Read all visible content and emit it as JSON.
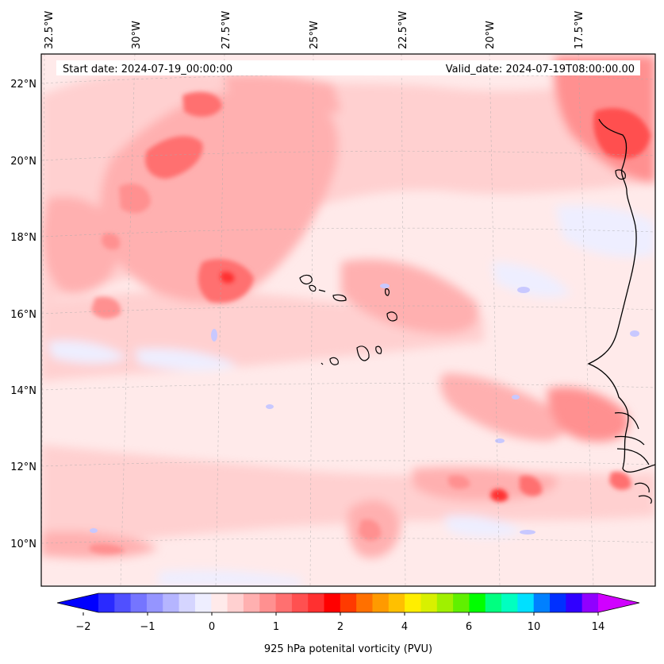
{
  "header": {
    "start_date": "Start date: 2024-07-19_00:00:00",
    "valid_date": "Valid_date: 2024-07-19T08:00:00.00"
  },
  "longitude_labels": [
    "32.5°W",
    "30°W",
    "27.5°W",
    "25°W",
    "22.5°W",
    "20°W",
    "17.5°W"
  ],
  "latitude_labels": [
    "22°N",
    "20°N",
    "18°N",
    "16°N",
    "14°N",
    "12°N",
    "10°N"
  ],
  "colorbar": {
    "title": "925 hPa potenital vorticity (PVU)",
    "tick_labels": [
      "−2",
      "−1",
      "0",
      "1",
      "2",
      "4",
      "6",
      "10",
      "14"
    ],
    "colors": [
      "#0000ff",
      "#2a2aff",
      "#5050ff",
      "#7575ff",
      "#9595ff",
      "#b5b5ff",
      "#d5d5ff",
      "#eeeeff",
      "#ffeaea",
      "#ffd0d0",
      "#ffb0b0",
      "#ff9090",
      "#ff7070",
      "#ff5050",
      "#ff3030",
      "#ff0000",
      "#ff3a00",
      "#ff7000",
      "#ff9a00",
      "#ffc000",
      "#ffee00",
      "#d8f000",
      "#a0f000",
      "#60f000",
      "#00ff00",
      "#00ff80",
      "#00ffc0",
      "#00e0ff",
      "#0080ff",
      "#0030ff",
      "#3000ff",
      "#9000ff",
      "#d000ff"
    ]
  },
  "map": {
    "background_color": "#ffeaea"
  }
}
